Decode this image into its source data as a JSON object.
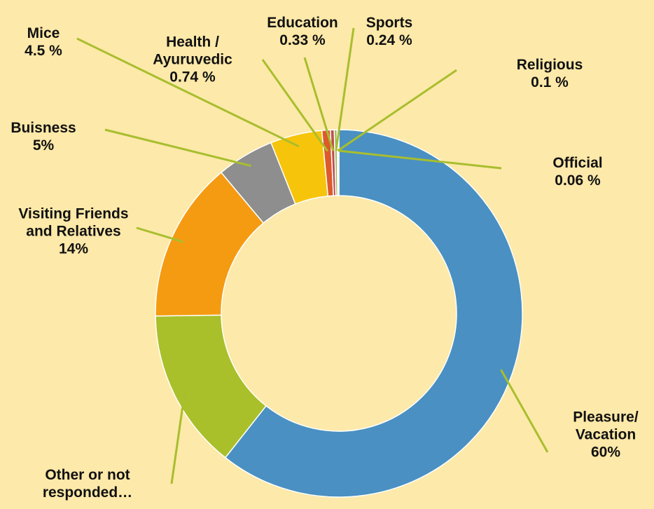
{
  "chart_data": {
    "type": "donut",
    "categories": [
      "Pleasure/ Vacation",
      "Other or not responded…",
      "Visiting Friends and Relatives",
      "Buisness",
      "Mice",
      "Health / Ayuruvedic",
      "Education",
      "Sports",
      "Religious",
      "Official"
    ],
    "values": [
      60,
      14,
      14,
      5,
      4.5,
      0.74,
      0.33,
      0.24,
      0.1,
      0.06
    ],
    "value_labels": [
      "60%",
      null,
      "14%",
      "5%",
      "4.5 %",
      "0.74 %",
      "0.33 %",
      "0.24 %",
      "0.1 %",
      "0.06 %"
    ],
    "colors": [
      "#4a90c2",
      "#a9c02b",
      "#f59b12",
      "#8e8e8e",
      "#f6c40a",
      "#dc5a2c",
      "#c0504d",
      "#9bbb59",
      "#8064a2",
      "#4bacc6"
    ]
  }
}
